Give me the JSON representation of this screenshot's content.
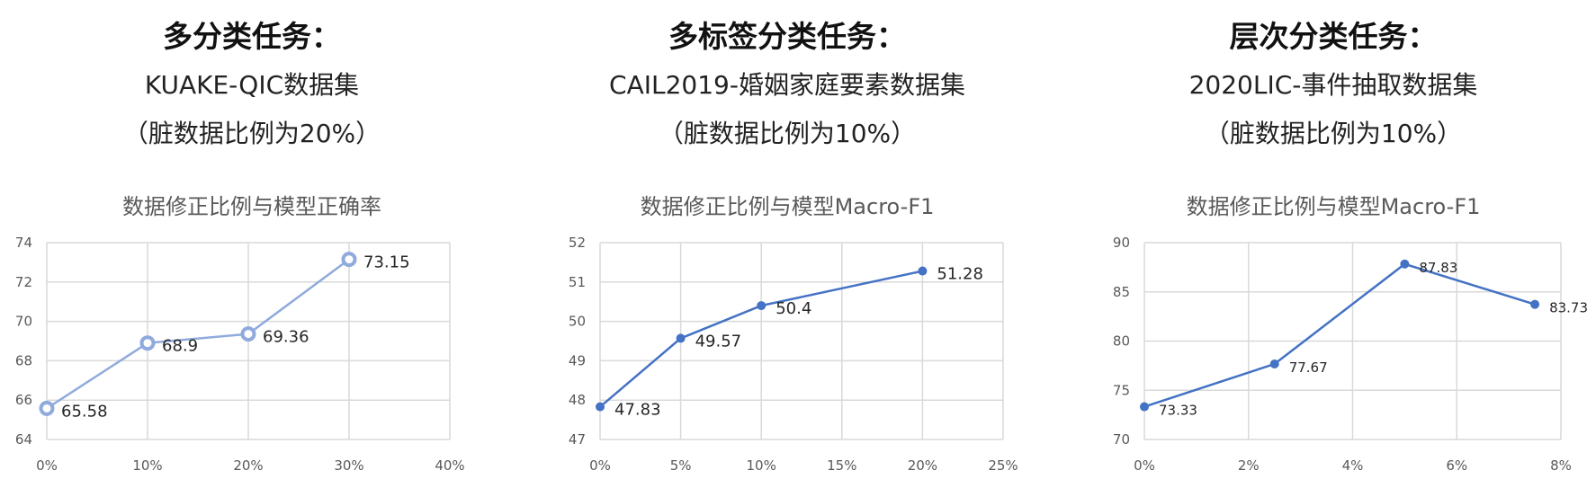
{
  "panels": [
    {
      "task_title": "多分类任务：",
      "dataset": "KUAKE-QIC数据集",
      "note": "（脏数据比例为20%）",
      "chart_title": "数据修正比例与模型正确率"
    },
    {
      "task_title": "多标签分类任务：",
      "dataset": "CAIL2019-婚姻家庭要素数据集",
      "note": "（脏数据比例为10%）",
      "chart_title": "数据修正比例与模型Macro-F1"
    },
    {
      "task_title": "层次分类任务：",
      "dataset": "2020LIC-事件抽取数据集",
      "note": "（脏数据比例为10%）",
      "chart_title": "数据修正比例与模型Macro-F1"
    }
  ],
  "chart_data": [
    {
      "type": "line",
      "title": "数据修正比例与模型正确率",
      "x": [
        0,
        10,
        20,
        30
      ],
      "y": [
        65.58,
        68.9,
        69.36,
        73.15
      ],
      "data_labels": [
        "65.58",
        "68.9",
        "69.36",
        "73.15"
      ],
      "xlim": [
        0,
        40
      ],
      "ylim": [
        64,
        74
      ],
      "x_ticks": [
        0,
        10,
        20,
        30,
        40
      ],
      "x_tick_labels": [
        "0%",
        "10%",
        "20%",
        "30%",
        "40%"
      ],
      "y_ticks": [
        64,
        66,
        68,
        70,
        72,
        74
      ],
      "y_tick_labels": [
        "64",
        "66",
        "68",
        "70",
        "72",
        "74"
      ],
      "grid": true,
      "marker": "ring",
      "color": "#8FAADC"
    },
    {
      "type": "line",
      "title": "数据修正比例与模型Macro-F1",
      "x": [
        0,
        5,
        10,
        20
      ],
      "y": [
        47.83,
        49.57,
        50.4,
        51.28
      ],
      "data_labels": [
        "47.83",
        "49.57",
        "50.4",
        "51.28"
      ],
      "xlim": [
        0,
        25
      ],
      "ylim": [
        47,
        52
      ],
      "x_ticks": [
        0,
        5,
        10,
        15,
        20,
        25
      ],
      "x_tick_labels": [
        "0%",
        "5%",
        "10%",
        "15%",
        "20%",
        "25%"
      ],
      "y_ticks": [
        47,
        48,
        49,
        50,
        51,
        52
      ],
      "y_tick_labels": [
        "47",
        "48",
        "49",
        "50",
        "51",
        "52"
      ],
      "grid": true,
      "marker": "dot",
      "color": "#4472C4"
    },
    {
      "type": "line",
      "title": "数据修正比例与模型Macro-F1",
      "x": [
        0,
        2.5,
        5,
        7.5
      ],
      "y": [
        73.33,
        77.67,
        87.83,
        83.73
      ],
      "data_labels": [
        "73.33",
        "77.67",
        "87.83",
        "83.73"
      ],
      "xlim": [
        0,
        8
      ],
      "ylim": [
        70,
        90
      ],
      "x_ticks": [
        0,
        2,
        4,
        6,
        8
      ],
      "x_tick_labels": [
        "0%",
        "2%",
        "4%",
        "6%",
        "8%"
      ],
      "y_ticks": [
        70,
        75,
        80,
        85,
        90
      ],
      "y_tick_labels": [
        "70",
        "75",
        "80",
        "85",
        "90"
      ],
      "grid": true,
      "marker": "dot",
      "color": "#4472C4"
    }
  ]
}
